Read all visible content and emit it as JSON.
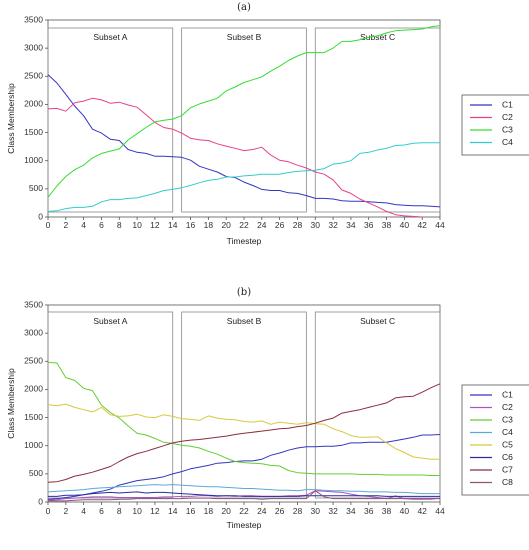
{
  "chart_data": [
    {
      "type": "line",
      "title": "(a)",
      "xlabel": "Timestep",
      "ylabel": "Class Membership",
      "xlim": [
        0,
        44
      ],
      "ylim": [
        0,
        3500
      ],
      "xticks": [
        0,
        2,
        4,
        6,
        8,
        10,
        12,
        14,
        16,
        18,
        20,
        22,
        24,
        26,
        28,
        30,
        32,
        34,
        36,
        38,
        40,
        42,
        44
      ],
      "yticks": [
        0,
        500,
        1000,
        1500,
        2000,
        2500,
        3000,
        3500
      ],
      "subsets": [
        {
          "label": "Subset A",
          "from": 0,
          "to": 14
        },
        {
          "label": "Subset B",
          "from": 15,
          "to": 29
        },
        {
          "label": "Subset C",
          "from": 30,
          "to": 44
        }
      ],
      "legend_position": "right",
      "x": [
        0,
        1,
        2,
        3,
        4,
        5,
        6,
        7,
        8,
        9,
        10,
        11,
        12,
        13,
        14,
        15,
        16,
        17,
        18,
        19,
        20,
        21,
        22,
        23,
        24,
        25,
        26,
        27,
        28,
        29,
        30,
        31,
        32,
        33,
        34,
        35,
        36,
        37,
        38,
        39,
        40,
        41,
        42,
        43,
        44
      ],
      "series": [
        {
          "name": "C1",
          "color": "#3535c0",
          "values": [
            2530,
            2380,
            2180,
            1970,
            1800,
            1560,
            1490,
            1380,
            1360,
            1200,
            1150,
            1130,
            1080,
            1080,
            1070,
            1060,
            1010,
            900,
            850,
            800,
            720,
            700,
            620,
            560,
            490,
            470,
            470,
            430,
            420,
            380,
            330,
            330,
            320,
            290,
            280,
            280,
            270,
            260,
            250,
            220,
            210,
            200,
            200,
            190,
            180
          ]
        },
        {
          "name": "C2",
          "color": "#e8408c",
          "values": [
            1920,
            1930,
            1880,
            2030,
            2060,
            2110,
            2080,
            2020,
            2040,
            1990,
            1950,
            1820,
            1680,
            1590,
            1560,
            1490,
            1400,
            1370,
            1360,
            1300,
            1260,
            1220,
            1180,
            1200,
            1240,
            1100,
            1010,
            980,
            920,
            870,
            800,
            760,
            660,
            480,
            420,
            320,
            250,
            180,
            100,
            40,
            20,
            10,
            0,
            null,
            null
          ]
        },
        {
          "name": "C3",
          "color": "#33dd33",
          "values": [
            350,
            550,
            720,
            840,
            920,
            1050,
            1130,
            1170,
            1210,
            1370,
            1480,
            1590,
            1690,
            1720,
            1740,
            1800,
            1940,
            2010,
            2060,
            2110,
            2240,
            2310,
            2390,
            2440,
            2490,
            2590,
            2680,
            2780,
            2860,
            2920,
            2920,
            2920,
            3000,
            3120,
            3120,
            3150,
            3190,
            3220,
            3270,
            3310,
            3320,
            3330,
            3340,
            3380,
            3400
          ]
        },
        {
          "name": "C4",
          "color": "#33cccc",
          "values": [
            100,
            110,
            150,
            170,
            170,
            190,
            270,
            310,
            310,
            330,
            340,
            380,
            420,
            470,
            490,
            520,
            560,
            610,
            650,
            670,
            710,
            710,
            730,
            740,
            760,
            760,
            760,
            790,
            810,
            820,
            830,
            860,
            940,
            960,
            1000,
            1130,
            1150,
            1190,
            1220,
            1270,
            1280,
            1310,
            1320,
            1320,
            1320
          ]
        }
      ]
    },
    {
      "type": "line",
      "title": "(b)",
      "xlabel": "Timestep",
      "ylabel": "Class Membership",
      "xlim": [
        0,
        44
      ],
      "ylim": [
        0,
        3500
      ],
      "xticks": [
        0,
        2,
        4,
        6,
        8,
        10,
        12,
        14,
        16,
        18,
        20,
        22,
        24,
        26,
        28,
        30,
        32,
        34,
        36,
        38,
        40,
        42,
        44
      ],
      "yticks": [
        0,
        500,
        1000,
        1500,
        2000,
        2500,
        3000,
        3500
      ],
      "subsets": [
        {
          "label": "Subset A",
          "from": 0,
          "to": 14
        },
        {
          "label": "Subset B",
          "from": 15,
          "to": 29
        },
        {
          "label": "Subset C",
          "from": 30,
          "to": 44
        }
      ],
      "legend_position": "right",
      "x": [
        0,
        1,
        2,
        3,
        4,
        5,
        6,
        7,
        8,
        9,
        10,
        11,
        12,
        13,
        14,
        15,
        16,
        17,
        18,
        19,
        20,
        21,
        22,
        23,
        24,
        25,
        26,
        27,
        28,
        29,
        30,
        31,
        32,
        33,
        34,
        35,
        36,
        37,
        38,
        39,
        40,
        41,
        42,
        43,
        44
      ],
      "series": [
        {
          "name": "C1",
          "color": "#3535c0",
          "values": [
            50,
            60,
            80,
            100,
            130,
            160,
            190,
            230,
            300,
            340,
            380,
            400,
            420,
            450,
            500,
            540,
            590,
            620,
            650,
            690,
            700,
            720,
            730,
            730,
            760,
            830,
            870,
            920,
            960,
            980,
            980,
            990,
            990,
            1010,
            1050,
            1050,
            1060,
            1060,
            1060,
            1090,
            1120,
            1150,
            1190,
            1190,
            1200
          ]
        },
        {
          "name": "C2",
          "color": "#a855c8",
          "values": [
            30,
            40,
            60,
            70,
            80,
            90,
            90,
            90,
            80,
            80,
            80,
            80,
            80,
            90,
            90,
            100,
            100,
            110,
            110,
            100,
            110,
            100,
            110,
            110,
            100,
            100,
            100,
            110,
            110,
            120,
            200,
            190,
            180,
            170,
            140,
            110,
            100,
            80,
            60,
            110,
            60,
            50,
            50,
            50,
            70
          ]
        },
        {
          "name": "C3",
          "color": "#66cc33",
          "values": [
            2480,
            2470,
            2210,
            2160,
            2020,
            1980,
            1720,
            1590,
            1490,
            1350,
            1220,
            1190,
            1130,
            1060,
            1040,
            1010,
            990,
            960,
            900,
            850,
            780,
            720,
            700,
            690,
            680,
            650,
            640,
            560,
            520,
            510,
            500,
            500,
            500,
            500,
            500,
            490,
            490,
            490,
            480,
            480,
            480,
            480,
            480,
            470,
            470
          ]
        },
        {
          "name": "C4",
          "color": "#5aaad8",
          "values": [
            180,
            190,
            200,
            210,
            220,
            240,
            250,
            260,
            270,
            280,
            290,
            300,
            310,
            300,
            310,
            300,
            290,
            280,
            270,
            270,
            260,
            250,
            240,
            240,
            230,
            220,
            210,
            210,
            200,
            220,
            220,
            210,
            200,
            200,
            190,
            190,
            180,
            180,
            180,
            170,
            170,
            160,
            150,
            150,
            150
          ]
        },
        {
          "name": "C5",
          "color": "#d8c840",
          "values": [
            1730,
            1710,
            1740,
            1680,
            1640,
            1600,
            1680,
            1550,
            1520,
            1530,
            1560,
            1510,
            1500,
            1550,
            1520,
            1480,
            1470,
            1450,
            1530,
            1490,
            1470,
            1460,
            1430,
            1420,
            1440,
            1380,
            1420,
            1400,
            1380,
            1410,
            1390,
            1380,
            1300,
            1250,
            1180,
            1150,
            1150,
            1160,
            1050,
            950,
            880,
            800,
            780,
            760,
            760
          ]
        },
        {
          "name": "C6",
          "color": "#2a2aa0",
          "values": [
            100,
            100,
            120,
            120,
            130,
            150,
            160,
            170,
            160,
            170,
            180,
            160,
            170,
            170,
            160,
            150,
            140,
            130,
            120,
            110,
            110,
            110,
            100,
            100,
            100,
            100,
            100,
            100,
            100,
            110,
            110,
            110,
            110,
            110,
            110,
            110,
            110,
            110,
            100,
            100,
            100,
            100,
            100,
            100,
            100
          ]
        },
        {
          "name": "C7",
          "color": "#8c2d3e",
          "values": [
            350,
            360,
            400,
            460,
            490,
            530,
            580,
            630,
            720,
            800,
            860,
            900,
            950,
            1000,
            1050,
            1080,
            1100,
            1110,
            1130,
            1150,
            1170,
            1200,
            1220,
            1240,
            1260,
            1280,
            1300,
            1310,
            1340,
            1360,
            1400,
            1450,
            1490,
            1580,
            1610,
            1640,
            1680,
            1720,
            1760,
            1850,
            1870,
            1880,
            1950,
            2030,
            2100
          ]
        },
        {
          "name": "C8",
          "color": "#8f5570",
          "values": [
            20,
            20,
            20,
            30,
            40,
            40,
            40,
            40,
            50,
            50,
            60,
            60,
            60,
            60,
            60,
            60,
            70,
            70,
            70,
            60,
            60,
            60,
            60,
            60,
            50,
            60,
            60,
            60,
            60,
            60,
            200,
            90,
            60,
            60,
            60,
            60,
            60,
            60,
            60,
            60,
            60,
            60,
            60,
            60,
            60
          ]
        }
      ]
    }
  ]
}
